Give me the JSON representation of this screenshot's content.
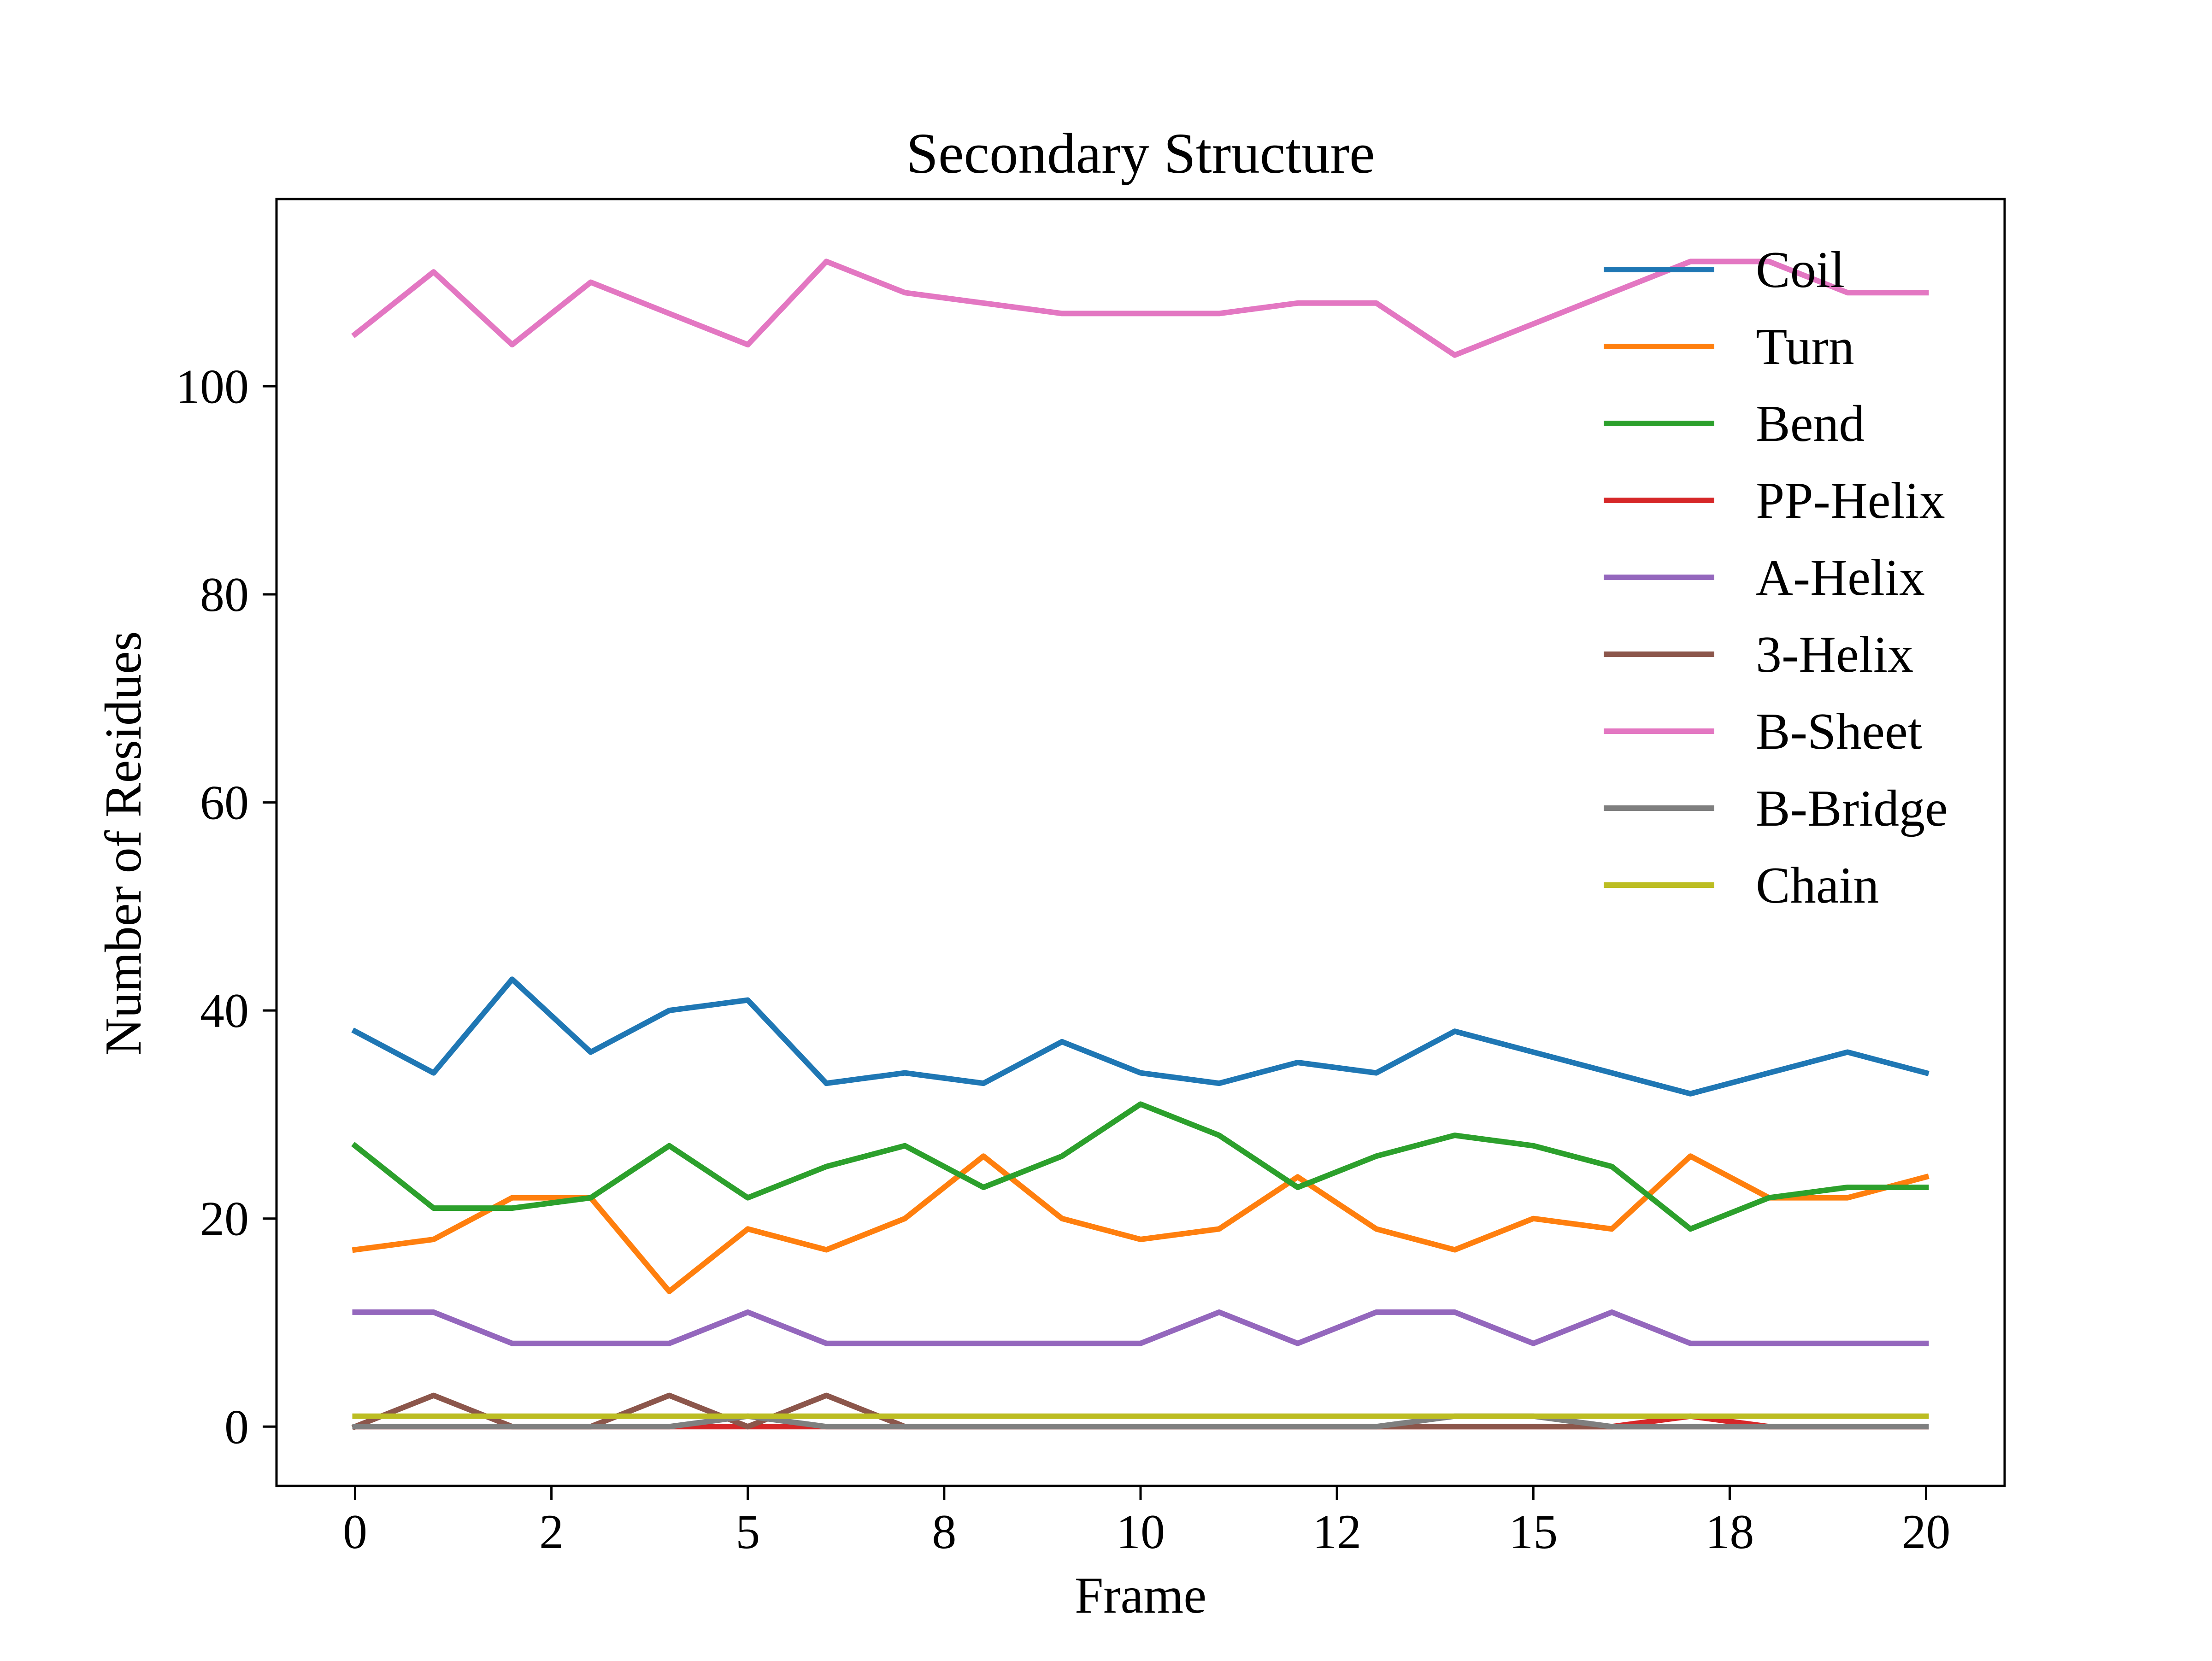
{
  "chart_data": {
    "type": "line",
    "title": "Secondary Structure",
    "xlabel": "Frame",
    "ylabel": "Number of Residues",
    "x": [
      0,
      1,
      2,
      3,
      4,
      5,
      6,
      7,
      8,
      9,
      10,
      11,
      12,
      13,
      14,
      15,
      16,
      17,
      18,
      19,
      20
    ],
    "xlim": [
      -1,
      21
    ],
    "ylim": [
      -5.7,
      118
    ],
    "x_ticks": [
      {
        "value": 0,
        "label": "0"
      },
      {
        "value": 2.5,
        "label": "2"
      },
      {
        "value": 5,
        "label": "5"
      },
      {
        "value": 7.5,
        "label": "8"
      },
      {
        "value": 10,
        "label": "10"
      },
      {
        "value": 12.5,
        "label": "12"
      },
      {
        "value": 15,
        "label": "15"
      },
      {
        "value": 17.5,
        "label": "18"
      },
      {
        "value": 20,
        "label": "20"
      }
    ],
    "y_ticks": [
      {
        "value": 0,
        "label": "0"
      },
      {
        "value": 20,
        "label": "20"
      },
      {
        "value": 40,
        "label": "40"
      },
      {
        "value": 60,
        "label": "60"
      },
      {
        "value": 80,
        "label": "80"
      },
      {
        "value": 100,
        "label": "100"
      }
    ],
    "grid": false,
    "legend_position": "top-right",
    "series": [
      {
        "name": "Coil",
        "color": "#1f77b4",
        "values": [
          38,
          34,
          43,
          36,
          40,
          41,
          33,
          34,
          33,
          37,
          34,
          33,
          35,
          34,
          38,
          36,
          34,
          32,
          34,
          36,
          34
        ]
      },
      {
        "name": "Turn",
        "color": "#ff7f0e",
        "values": [
          17,
          18,
          22,
          22,
          13,
          19,
          17,
          20,
          26,
          20,
          18,
          19,
          24,
          19,
          17,
          20,
          19,
          26,
          22,
          22,
          24
        ]
      },
      {
        "name": "Bend",
        "color": "#2ca02c",
        "values": [
          27,
          21,
          21,
          22,
          27,
          22,
          25,
          27,
          23,
          26,
          31,
          28,
          23,
          26,
          28,
          27,
          25,
          19,
          22,
          23,
          23
        ]
      },
      {
        "name": "PP-Helix",
        "color": "#d62728",
        "values": [
          0,
          0,
          0,
          0,
          0,
          0,
          0,
          0,
          0,
          0,
          0,
          0,
          0,
          0,
          0,
          0,
          0,
          1,
          0,
          0,
          0
        ]
      },
      {
        "name": "A-Helix",
        "color": "#9467bd",
        "values": [
          11,
          11,
          8,
          8,
          8,
          11,
          8,
          8,
          8,
          8,
          8,
          11,
          8,
          11,
          11,
          8,
          11,
          8,
          8,
          8,
          8
        ]
      },
      {
        "name": "3-Helix",
        "color": "#8c564b",
        "values": [
          0,
          3,
          0,
          0,
          3,
          0,
          3,
          0,
          0,
          0,
          0,
          0,
          0,
          0,
          0,
          0,
          0,
          0,
          0,
          0,
          0
        ]
      },
      {
        "name": "B-Sheet",
        "color": "#e377c2",
        "values": [
          105,
          111,
          104,
          110,
          107,
          104,
          112,
          109,
          108,
          107,
          107,
          107,
          108,
          108,
          103,
          106,
          109,
          112,
          112,
          109,
          109
        ]
      },
      {
        "name": "B-Bridge",
        "color": "#7f7f7f",
        "values": [
          0,
          0,
          0,
          0,
          0,
          1,
          0,
          0,
          0,
          0,
          0,
          0,
          0,
          0,
          1,
          1,
          0,
          0,
          0,
          0,
          0
        ]
      },
      {
        "name": "Chain",
        "color": "#bcbd22",
        "values": [
          1,
          1,
          1,
          1,
          1,
          1,
          1,
          1,
          1,
          1,
          1,
          1,
          1,
          1,
          1,
          1,
          1,
          1,
          1,
          1,
          1
        ]
      }
    ]
  }
}
